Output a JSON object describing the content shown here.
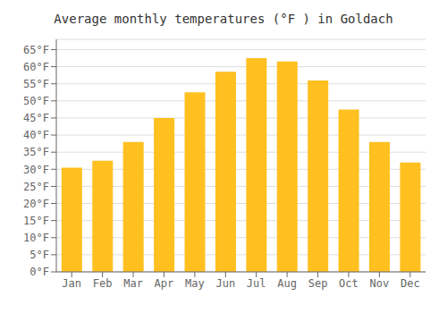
{
  "chart_data": {
    "type": "bar",
    "title": "Average monthly temperatures (°F ) in Goldach",
    "categories": [
      "Jan",
      "Feb",
      "Mar",
      "Apr",
      "May",
      "Jun",
      "Jul",
      "Aug",
      "Sep",
      "Oct",
      "Nov",
      "Dec"
    ],
    "values": [
      30.5,
      32.5,
      38.0,
      45.0,
      52.5,
      58.5,
      62.5,
      61.5,
      56.0,
      47.5,
      38.0,
      32.0
    ],
    "color": "#FFC020",
    "ylim": [
      0,
      68
    ],
    "yticks": [
      {
        "value": 0,
        "label": "0°F"
      },
      {
        "value": 5,
        "label": "5°F"
      },
      {
        "value": 10,
        "label": "10°F"
      },
      {
        "value": 15,
        "label": "15°F"
      },
      {
        "value": 20,
        "label": "20°F"
      },
      {
        "value": 25,
        "label": "25°F"
      },
      {
        "value": 30,
        "label": "30°F"
      },
      {
        "value": 35,
        "label": "35°F"
      },
      {
        "value": 40,
        "label": "40°F"
      },
      {
        "value": 45,
        "label": "45°F"
      },
      {
        "value": 50,
        "label": "50°F"
      },
      {
        "value": 55,
        "label": "55°F"
      },
      {
        "value": 60,
        "label": "60°F"
      },
      {
        "value": 65,
        "label": "65°F"
      }
    ],
    "grid": true
  }
}
